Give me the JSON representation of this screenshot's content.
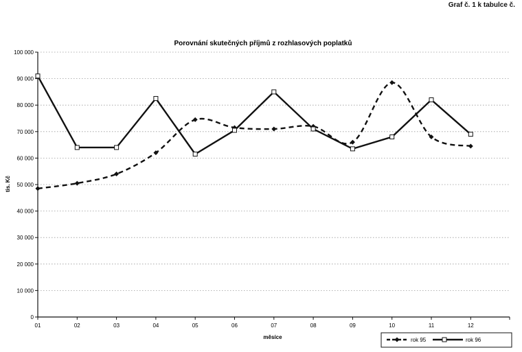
{
  "page_label": "Graf č. 1 k tabulce č.",
  "chart_data": {
    "type": "line",
    "title": "Porovnání skutečných příjmů z rozhlasových poplatků",
    "xlabel": "měsíce",
    "ylabel": "tis. Kč",
    "categories": [
      "01",
      "02",
      "03",
      "04",
      "05",
      "06",
      "07",
      "08",
      "09",
      "10",
      "11",
      "12"
    ],
    "ylim": [
      0,
      100000
    ],
    "ytick_values": [
      0,
      10000,
      20000,
      30000,
      40000,
      50000,
      60000,
      70000,
      80000,
      90000,
      100000
    ],
    "ytick_labels": [
      "0",
      "10 000",
      "20 000",
      "30 000",
      "40 000",
      "50 000",
      "60 000",
      "70 000",
      "80 000",
      "90 000",
      "100 000"
    ],
    "grid": "horizontal dotted",
    "legend_position": "bottom-right",
    "series": [
      {
        "name": "rok 95",
        "style": "dashed",
        "marker": "diamond",
        "color": "#111111",
        "values": [
          48500,
          50500,
          54000,
          62000,
          74500,
          71500,
          71000,
          72000,
          66000,
          88500,
          68000,
          64500
        ]
      },
      {
        "name": "rok 96",
        "style": "solid",
        "marker": "square",
        "color": "#111111",
        "values": [
          91000,
          64000,
          64000,
          82500,
          61500,
          70500,
          85000,
          71000,
          63500,
          68000,
          82000,
          69000
        ]
      }
    ]
  }
}
